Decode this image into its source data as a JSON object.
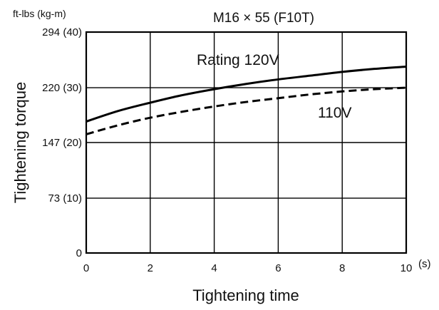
{
  "chart_data": {
    "type": "line",
    "title": "M16 × 55 (F10T)",
    "xlabel": "Tightening time",
    "ylabel": "Tightening torque",
    "y_unit_label": "ft-lbs (kg-m)",
    "x_unit_label": "(s)",
    "xlim": [
      0,
      10
    ],
    "ylim": [
      0,
      294
    ],
    "grid": true,
    "x_ticks": [
      {
        "value": 0,
        "label": "0"
      },
      {
        "value": 2,
        "label": "2"
      },
      {
        "value": 4,
        "label": "4"
      },
      {
        "value": 6,
        "label": "6"
      },
      {
        "value": 8,
        "label": "8"
      },
      {
        "value": 10,
        "label": "10"
      }
    ],
    "y_ticks": [
      {
        "value": 0,
        "label": "0"
      },
      {
        "value": 73,
        "label": "73 (10)"
      },
      {
        "value": 147,
        "label": "147 (20)"
      },
      {
        "value": 220,
        "label": "220 (30)"
      },
      {
        "value": 294,
        "label": "294 (40)"
      }
    ],
    "series": [
      {
        "name": "Rating 120V",
        "style": "solid",
        "color": "#000000",
        "x": [
          0,
          1,
          2,
          3,
          4,
          5,
          6,
          7,
          8,
          9,
          10
        ],
        "y": [
          175,
          189,
          200,
          210,
          218,
          225,
          231,
          236,
          241,
          245,
          248
        ]
      },
      {
        "name": "110V",
        "style": "dashed",
        "color": "#000000",
        "x": [
          0,
          1,
          2,
          3,
          4,
          5,
          6,
          7,
          8,
          9,
          10
        ],
        "y": [
          158,
          170,
          180,
          188,
          195,
          201,
          206,
          211,
          215,
          218,
          220
        ]
      }
    ]
  }
}
